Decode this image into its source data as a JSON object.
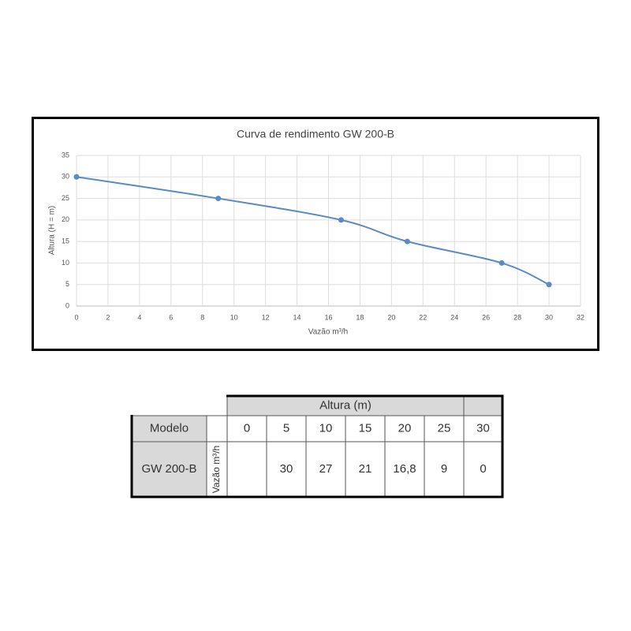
{
  "chart_data": {
    "type": "line",
    "title": "Curva de rendimento GW 200-B",
    "x_label": "Vazão m³/h",
    "y_label": "Altura (H = m)",
    "x": [
      0,
      9,
      16.8,
      21,
      27,
      30
    ],
    "series": [
      {
        "name": "GW 200-B",
        "color": "#5b8ac6",
        "values": [
          30,
          25,
          20,
          15,
          10,
          5
        ]
      }
    ],
    "xlim": [
      0,
      32
    ],
    "xticks": [
      0,
      2,
      4,
      6,
      8,
      10,
      12,
      14,
      16,
      18,
      20,
      22,
      24,
      26,
      28,
      30,
      32
    ],
    "ylim": [
      0,
      35
    ],
    "yticks": [
      0,
      5,
      10,
      15,
      20,
      25,
      30,
      35
    ],
    "grid": true
  },
  "table": {
    "group_header": "Altura (m)",
    "model_header": "Modelo",
    "heights": [
      "0",
      "5",
      "10",
      "15",
      "20",
      "25",
      "30"
    ],
    "rows": [
      {
        "model": "GW 200-B",
        "unit": "Vazão m³/h",
        "flows": [
          null,
          "30",
          "27",
          "21",
          "16,8",
          "9",
          "0"
        ]
      }
    ]
  }
}
